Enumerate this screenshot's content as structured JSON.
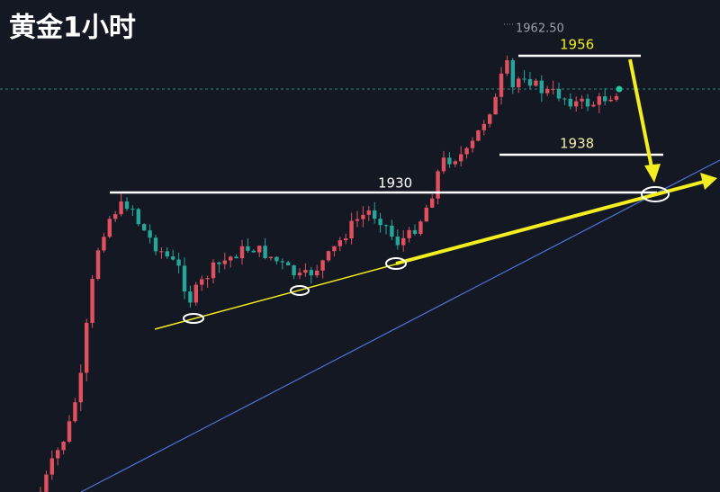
{
  "title": "黄金1小时",
  "labels": {
    "high": "1962.50",
    "level_1956": "1956",
    "level_1938": "1938",
    "level_1930": "1930"
  }
}
